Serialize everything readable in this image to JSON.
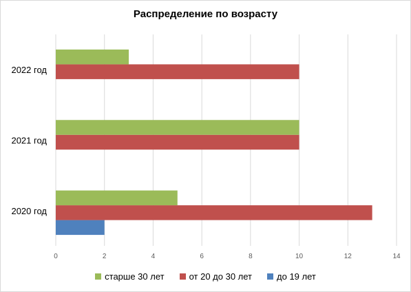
{
  "chart_data": {
    "type": "bar",
    "orientation": "horizontal",
    "title": "Распределение по возрасту",
    "categories": [
      "2020 год",
      "2021 год",
      "2022 год"
    ],
    "series": [
      {
        "name": "до 19 лет",
        "color": "#4f81bd",
        "values": [
          2,
          null,
          null
        ]
      },
      {
        "name": "от 20 до 30 лет",
        "color": "#c0504d",
        "values": [
          13,
          10,
          10
        ]
      },
      {
        "name": "старше 30 лет",
        "color": "#9bbb59",
        "values": [
          5,
          10,
          3
        ]
      }
    ],
    "x_ticks": [
      "0",
      "2",
      "4",
      "6",
      "8",
      "10",
      "12",
      "14"
    ],
    "xlim": [
      0,
      14
    ],
    "grid": "vertical",
    "legend_position": "bottom",
    "legend_order": [
      "старше 30 лет",
      "от 20 до 30 лет",
      "до 19 лет"
    ]
  }
}
